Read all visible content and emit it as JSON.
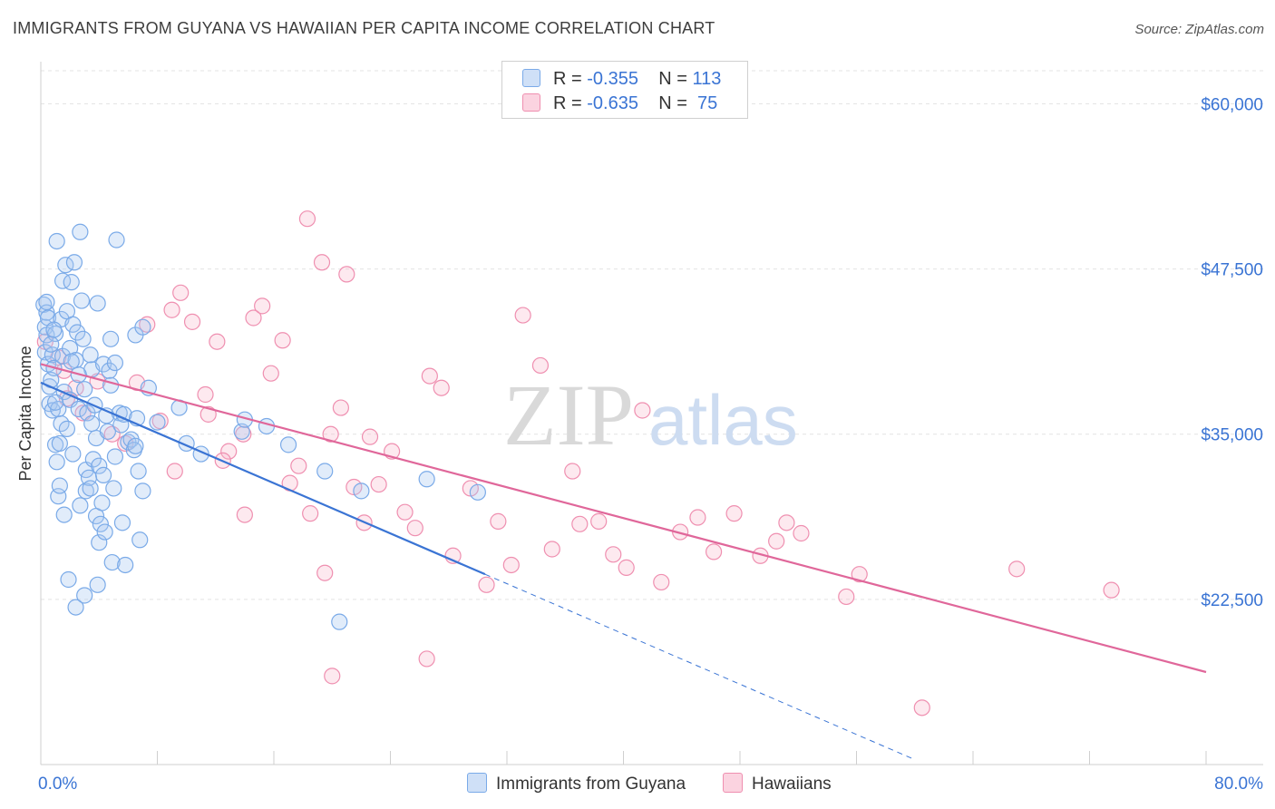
{
  "title": "IMMIGRANTS FROM GUYANA VS HAWAIIAN PER CAPITA INCOME CORRELATION CHART",
  "source": "Source: ZipAtlas.com",
  "watermark": {
    "zip": "ZIP",
    "atlas": "atlas"
  },
  "legend": [
    {
      "r_label": "R =",
      "r_value": "-0.355",
      "n_label": "N =",
      "n_value": "113",
      "color": "#a9c8f2"
    },
    {
      "r_label": "R =",
      "r_value": "-0.635",
      "n_label": "N =",
      "n_value": "75",
      "color": "#f7b6cb"
    }
  ],
  "bottom_legend": [
    {
      "label": "Immigrants from Guyana",
      "color": "#a9c8f2"
    },
    {
      "label": "Hawaiians",
      "color": "#f7b6cb"
    }
  ],
  "chart_data": {
    "type": "scatter",
    "xlabel": "",
    "ylabel": "Per Capita Income",
    "xlim": [
      0,
      80
    ],
    "ylim": [
      10000,
      62500
    ],
    "x_tick_labels": [
      "0.0%",
      "80.0%"
    ],
    "y_ticks": [
      22500,
      35000,
      47500,
      60000
    ],
    "y_tick_labels": [
      "$22,500",
      "$35,000",
      "$47,500",
      "$60,000"
    ],
    "series": [
      {
        "name": "Immigrants from Guyana",
        "color": "#7aaae8",
        "trend": {
          "x": [
            0,
            30.5
          ],
          "y": [
            38900,
            24400
          ],
          "dashed_to_x": 60
        },
        "points": [
          [
            0.2,
            44.8
          ],
          [
            0.3,
            43.1
          ],
          [
            0.3,
            41.2
          ],
          [
            0.4,
            44.2
          ],
          [
            0.4,
            42.5
          ],
          [
            0.5,
            40.3
          ],
          [
            0.5,
            43.8
          ],
          [
            0.6,
            38.6
          ],
          [
            0.6,
            37.3
          ],
          [
            0.7,
            39.1
          ],
          [
            0.8,
            41.0
          ],
          [
            0.8,
            36.8
          ],
          [
            0.9,
            40.0
          ],
          [
            1.0,
            42.6
          ],
          [
            1.0,
            34.2
          ],
          [
            1.1,
            32.9
          ],
          [
            1.1,
            49.6
          ],
          [
            1.2,
            36.9
          ],
          [
            1.2,
            30.3
          ],
          [
            1.3,
            31.1
          ],
          [
            1.4,
            35.8
          ],
          [
            1.4,
            43.7
          ],
          [
            1.5,
            46.6
          ],
          [
            1.5,
            40.9
          ],
          [
            1.6,
            38.2
          ],
          [
            1.6,
            28.9
          ],
          [
            1.7,
            47.8
          ],
          [
            1.8,
            44.3
          ],
          [
            1.8,
            35.4
          ],
          [
            1.9,
            24.0
          ],
          [
            2.0,
            41.5
          ],
          [
            2.0,
            37.6
          ],
          [
            2.1,
            46.5
          ],
          [
            2.2,
            43.3
          ],
          [
            2.2,
            33.5
          ],
          [
            2.3,
            48.0
          ],
          [
            2.4,
            21.9
          ],
          [
            2.4,
            40.6
          ],
          [
            2.5,
            42.7
          ],
          [
            2.6,
            36.9
          ],
          [
            2.7,
            29.6
          ],
          [
            2.7,
            50.3
          ],
          [
            2.8,
            45.1
          ],
          [
            2.9,
            42.2
          ],
          [
            3.0,
            22.8
          ],
          [
            3.0,
            38.4
          ],
          [
            3.1,
            32.3
          ],
          [
            3.1,
            30.7
          ],
          [
            3.2,
            36.6
          ],
          [
            3.3,
            31.7
          ],
          [
            3.4,
            30.9
          ],
          [
            3.5,
            39.9
          ],
          [
            3.5,
            35.8
          ],
          [
            3.6,
            33.1
          ],
          [
            3.7,
            37.2
          ],
          [
            3.8,
            28.8
          ],
          [
            3.8,
            34.7
          ],
          [
            3.9,
            44.9
          ],
          [
            3.9,
            23.6
          ],
          [
            4.0,
            26.8
          ],
          [
            4.0,
            32.6
          ],
          [
            4.1,
            28.2
          ],
          [
            4.2,
            29.8
          ],
          [
            4.3,
            40.3
          ],
          [
            4.3,
            31.9
          ],
          [
            4.4,
            27.6
          ],
          [
            4.5,
            36.4
          ],
          [
            4.6,
            35.2
          ],
          [
            4.7,
            39.8
          ],
          [
            4.8,
            42.2
          ],
          [
            4.8,
            38.7
          ],
          [
            4.9,
            25.3
          ],
          [
            5.0,
            30.9
          ],
          [
            5.1,
            40.4
          ],
          [
            5.1,
            33.3
          ],
          [
            5.2,
            49.7
          ],
          [
            5.4,
            36.6
          ],
          [
            5.5,
            35.7
          ],
          [
            5.6,
            28.3
          ],
          [
            5.7,
            36.5
          ],
          [
            5.8,
            25.1
          ],
          [
            6.0,
            34.4
          ],
          [
            6.2,
            34.6
          ],
          [
            6.4,
            33.8
          ],
          [
            6.5,
            42.5
          ],
          [
            6.5,
            34.1
          ],
          [
            6.6,
            36.2
          ],
          [
            6.7,
            32.2
          ],
          [
            6.8,
            27.0
          ],
          [
            7.0,
            30.7
          ],
          [
            7.0,
            43.1
          ],
          [
            7.4,
            38.5
          ],
          [
            8.0,
            35.9
          ],
          [
            9.5,
            37.0
          ],
          [
            10.0,
            34.3
          ],
          [
            11.0,
            33.5
          ],
          [
            13.8,
            35.2
          ],
          [
            14.0,
            36.1
          ],
          [
            15.5,
            35.6
          ],
          [
            17.0,
            34.2
          ],
          [
            19.5,
            32.2
          ],
          [
            20.5,
            20.8
          ],
          [
            22.0,
            30.7
          ],
          [
            26.5,
            31.6
          ],
          [
            30.0,
            30.6
          ],
          [
            0.4,
            45.0
          ],
          [
            0.9,
            42.9
          ],
          [
            1.3,
            34.3
          ],
          [
            2.6,
            39.5
          ],
          [
            3.4,
            41.0
          ],
          [
            1.0,
            37.4
          ],
          [
            2.1,
            40.5
          ],
          [
            0.7,
            41.8
          ]
        ]
      },
      {
        "name": "Hawaiians",
        "color": "#ef8fb0",
        "trend": {
          "x": [
            0,
            80
          ],
          "y": [
            40300,
            17000
          ]
        },
        "points": [
          [
            0.3,
            42.0
          ],
          [
            1.2,
            40.8
          ],
          [
            1.6,
            39.8
          ],
          [
            1.8,
            37.7
          ],
          [
            2.4,
            38.5
          ],
          [
            2.9,
            36.6
          ],
          [
            3.9,
            39.0
          ],
          [
            4.9,
            35.0
          ],
          [
            5.8,
            34.3
          ],
          [
            6.6,
            38.9
          ],
          [
            7.3,
            43.3
          ],
          [
            8.2,
            36.0
          ],
          [
            9.0,
            44.4
          ],
          [
            9.6,
            45.7
          ],
          [
            10.4,
            43.5
          ],
          [
            11.3,
            38.0
          ],
          [
            12.1,
            42.0
          ],
          [
            12.9,
            33.7
          ],
          [
            13.9,
            35.0
          ],
          [
            14.6,
            43.8
          ],
          [
            15.2,
            44.7
          ],
          [
            15.8,
            39.6
          ],
          [
            16.6,
            42.1
          ],
          [
            17.1,
            31.3
          ],
          [
            17.7,
            32.6
          ],
          [
            18.3,
            51.3
          ],
          [
            19.3,
            48.0
          ],
          [
            19.9,
            35.0
          ],
          [
            20.6,
            37.0
          ],
          [
            21.0,
            47.1
          ],
          [
            21.5,
            31.0
          ],
          [
            22.2,
            28.3
          ],
          [
            22.6,
            34.8
          ],
          [
            23.2,
            31.2
          ],
          [
            24.1,
            33.7
          ],
          [
            25.0,
            29.1
          ],
          [
            25.7,
            27.9
          ],
          [
            26.7,
            39.4
          ],
          [
            27.5,
            38.5
          ],
          [
            28.3,
            25.8
          ],
          [
            29.5,
            30.9
          ],
          [
            30.6,
            23.6
          ],
          [
            31.4,
            28.4
          ],
          [
            32.3,
            25.1
          ],
          [
            33.1,
            44.0
          ],
          [
            34.3,
            40.2
          ],
          [
            35.1,
            26.3
          ],
          [
            36.5,
            32.2
          ],
          [
            37.0,
            28.2
          ],
          [
            38.3,
            28.4
          ],
          [
            39.3,
            25.9
          ],
          [
            40.2,
            24.9
          ],
          [
            41.3,
            36.8
          ],
          [
            42.6,
            23.8
          ],
          [
            43.9,
            27.6
          ],
          [
            45.1,
            28.7
          ],
          [
            46.2,
            26.1
          ],
          [
            47.6,
            29.0
          ],
          [
            49.4,
            25.8
          ],
          [
            50.5,
            26.9
          ],
          [
            51.2,
            28.3
          ],
          [
            52.2,
            27.5
          ],
          [
            55.3,
            22.7
          ],
          [
            56.2,
            24.4
          ],
          [
            60.5,
            14.3
          ],
          [
            67.0,
            24.8
          ],
          [
            73.5,
            23.2
          ],
          [
            12.5,
            33.0
          ],
          [
            14.0,
            28.9
          ],
          [
            18.5,
            29.0
          ],
          [
            20.0,
            16.7
          ],
          [
            26.5,
            18.0
          ],
          [
            19.5,
            24.5
          ],
          [
            9.2,
            32.2
          ],
          [
            11.5,
            36.5
          ]
        ]
      }
    ]
  }
}
